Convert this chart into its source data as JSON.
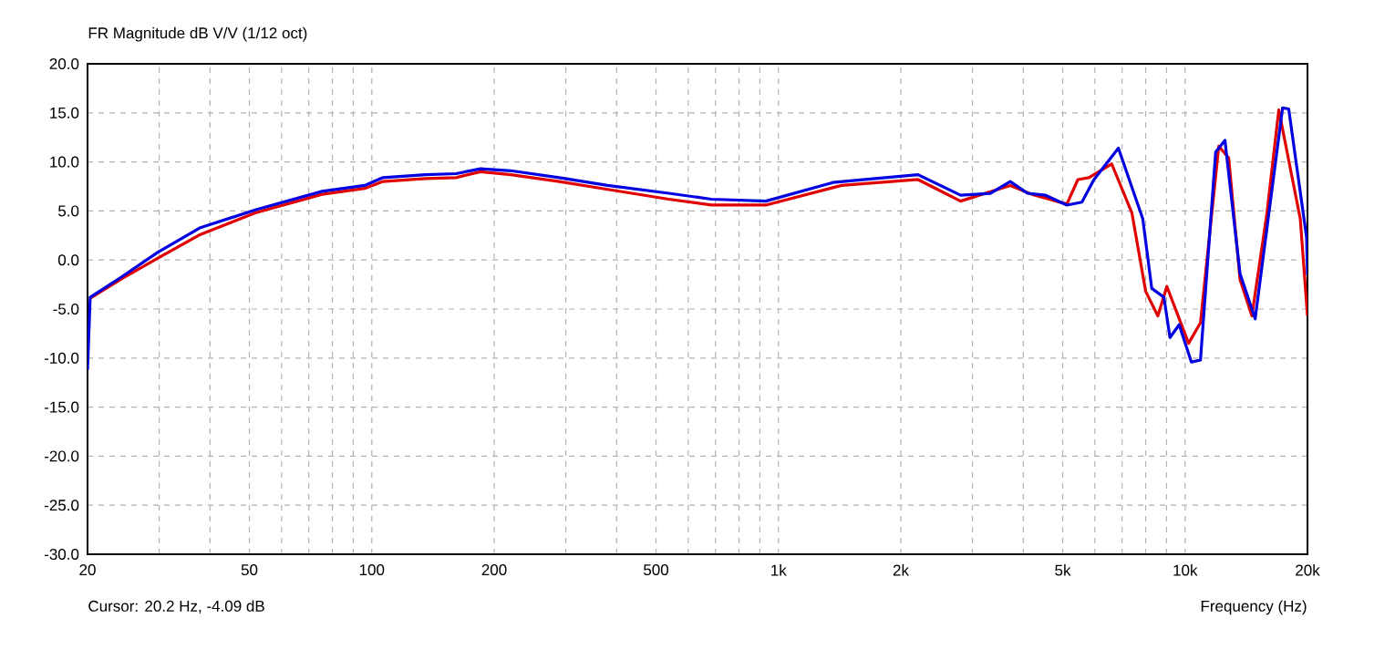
{
  "chart_data": {
    "type": "line",
    "title": "FR Magnitude dB V/V (1/12 oct)",
    "xlabel": "Frequency (Hz)",
    "annotations": [
      "Cursor: 20.2 Hz, -4.09 dB"
    ],
    "log": "x",
    "grid": true,
    "line_style": "solid",
    "xlim": [
      20,
      20000
    ],
    "ylim": [
      -30,
      20
    ],
    "xticks": [
      {
        "value": 20,
        "label": "20"
      },
      {
        "value": 30,
        "label": null
      },
      {
        "value": 40,
        "label": null
      },
      {
        "value": 50,
        "label": "50"
      },
      {
        "value": 60,
        "label": null
      },
      {
        "value": 70,
        "label": null
      },
      {
        "value": 80,
        "label": null
      },
      {
        "value": 90,
        "label": null
      },
      {
        "value": 100,
        "label": "100"
      },
      {
        "value": 200,
        "label": "200"
      },
      {
        "value": 300,
        "label": null
      },
      {
        "value": 400,
        "label": null
      },
      {
        "value": 500,
        "label": "500"
      },
      {
        "value": 600,
        "label": null
      },
      {
        "value": 700,
        "label": null
      },
      {
        "value": 800,
        "label": null
      },
      {
        "value": 900,
        "label": null
      },
      {
        "value": 1000,
        "label": "1k"
      },
      {
        "value": 2000,
        "label": "2k"
      },
      {
        "value": 3000,
        "label": null
      },
      {
        "value": 4000,
        "label": null
      },
      {
        "value": 5000,
        "label": "5k"
      },
      {
        "value": 6000,
        "label": null
      },
      {
        "value": 7000,
        "label": null
      },
      {
        "value": 8000,
        "label": null
      },
      {
        "value": 9000,
        "label": null
      },
      {
        "value": 10000,
        "label": "10k"
      },
      {
        "value": 20000,
        "label": "20k"
      }
    ],
    "yticks": [
      {
        "value": -30,
        "label": "-30.0"
      },
      {
        "value": -25,
        "label": "-25.0"
      },
      {
        "value": -20,
        "label": "-20.0"
      },
      {
        "value": -15,
        "label": "-15.0"
      },
      {
        "value": -10,
        "label": "-10.0"
      },
      {
        "value": -5,
        "label": "-5.0"
      },
      {
        "value": 0,
        "label": "0.0"
      },
      {
        "value": 5,
        "label": "5.0"
      },
      {
        "value": 10,
        "label": "10.0"
      },
      {
        "value": 15,
        "label": "15.0"
      },
      {
        "value": 20,
        "label": "20.0"
      }
    ],
    "series": [
      {
        "color": "#e00000",
        "x": [
          20.3,
          24.3,
          29.8,
          37.9,
          51.7,
          75.5,
          96.1,
          106.5,
          135.5,
          161,
          185,
          219.6,
          289,
          380,
          537,
          684,
          931,
          1430,
          2203,
          2805,
          3716,
          4200,
          5120,
          5450,
          5800,
          6600,
          7400,
          8000,
          8570,
          9020,
          10200,
          10910,
          12100,
          12800,
          13650,
          14600,
          15900,
          17000,
          19200,
          20000
        ],
        "values": [
          -3.9,
          -1.9,
          0.2,
          2.6,
          4.8,
          6.7,
          7.3,
          8.0,
          8.3,
          8.4,
          9.0,
          8.7,
          8.0,
          7.2,
          6.2,
          5.6,
          5.6,
          7.6,
          8.2,
          6.0,
          7.6,
          6.7,
          5.7,
          8.2,
          8.4,
          9.8,
          4.8,
          -3.2,
          -5.7,
          -2.7,
          -8.5,
          -6.4,
          11.6,
          10.4,
          -2.0,
          -5.7,
          4.8,
          15.3,
          4.2,
          -5.7
        ]
      },
      {
        "color": "#0000e0",
        "x": [
          20,
          20.3,
          24.3,
          29.8,
          37.9,
          51.7,
          75.5,
          96.1,
          106.5,
          135.5,
          161,
          185,
          219.6,
          289,
          380,
          537,
          684,
          931,
          1361,
          2203,
          2805,
          3320,
          3716,
          4095,
          4540,
          5120,
          5575,
          5970,
          6855,
          7870,
          8280,
          8870,
          9180,
          9670,
          10360,
          10910,
          11890,
          12530,
          13650,
          14870,
          17370,
          17980,
          19900,
          20000
        ],
        "values": [
          -11.2,
          -3.8,
          -1.7,
          0.8,
          3.3,
          5.1,
          7.0,
          7.6,
          8.4,
          8.7,
          8.8,
          9.3,
          9.1,
          8.4,
          7.6,
          6.8,
          6.2,
          6.0,
          7.9,
          8.7,
          6.6,
          6.8,
          8.0,
          6.8,
          6.6,
          5.6,
          5.9,
          8.2,
          11.4,
          4.2,
          -2.9,
          -3.8,
          -7.9,
          -6.6,
          -10.4,
          -10.2,
          11.0,
          12.2,
          -1.4,
          -6.0,
          15.5,
          15.4,
          2.3,
          -1.5
        ]
      }
    ]
  }
}
